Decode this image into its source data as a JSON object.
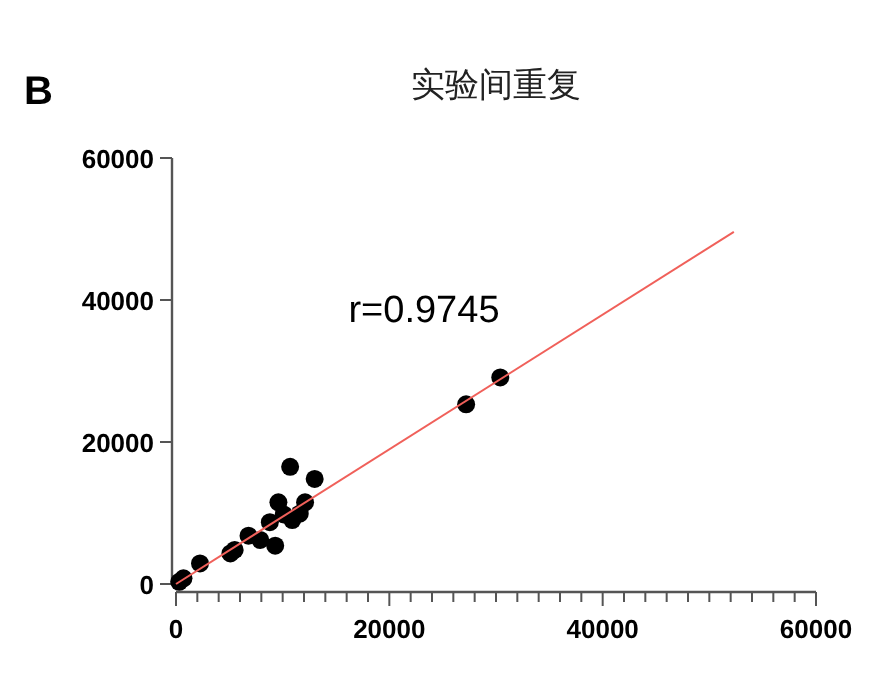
{
  "chart_data": {
    "type": "scatter",
    "title": "实验间重复",
    "annotations": [
      "B",
      "r=0.9745"
    ],
    "xlim": [
      0,
      60000
    ],
    "ylim": [
      0,
      60000
    ],
    "xticks": [
      0,
      {
        "value": 2000,
        "label": null
      },
      {
        "value": 4000,
        "label": null
      },
      {
        "value": 6000,
        "label": null
      },
      {
        "value": 8000,
        "label": null
      },
      {
        "value": 10000,
        "label": null
      },
      {
        "value": 12000,
        "label": null
      },
      {
        "value": 14000,
        "label": null
      },
      {
        "value": 16000,
        "label": null
      },
      {
        "value": 18000,
        "label": null
      },
      20000,
      {
        "value": 22000,
        "label": null
      },
      {
        "value": 24000,
        "label": null
      },
      {
        "value": 26000,
        "label": null
      },
      {
        "value": 28000,
        "label": null
      },
      {
        "value": 30000,
        "label": null
      },
      {
        "value": 32000,
        "label": null
      },
      {
        "value": 34000,
        "label": null
      },
      {
        "value": 36000,
        "label": null
      },
      {
        "value": 38000,
        "label": null
      },
      40000,
      {
        "value": 42000,
        "label": null
      },
      {
        "value": 44000,
        "label": null
      },
      {
        "value": 46000,
        "label": null
      },
      {
        "value": 48000,
        "label": null
      },
      {
        "value": 50000,
        "label": null
      },
      {
        "value": 52000,
        "label": null
      },
      {
        "value": 54000,
        "label": null
      },
      {
        "value": 56000,
        "label": null
      },
      {
        "value": 58000,
        "label": null
      },
      60000
    ],
    "yticks": [
      0,
      20000,
      40000,
      60000
    ],
    "grid": false,
    "marker": "circle",
    "series": [
      {
        "type": "scatter",
        "color": "#000000",
        "x": [
          300,
          700,
          2250,
          5100,
          5500,
          6800,
          7900,
          9300,
          8800,
          9600,
          10100,
          10700,
          10900,
          11600,
          12100,
          13000,
          27200,
          30400
        ],
        "values": [
          300,
          800,
          2900,
          4300,
          4800,
          6800,
          6200,
          5400,
          8700,
          11500,
          9800,
          16500,
          9000,
          9900,
          11500,
          14800,
          25300,
          29100
        ]
      },
      {
        "type": "line",
        "color": "#f0605a",
        "marker": "none",
        "x": [
          0,
          52300
        ],
        "values": [
          0,
          49600
        ]
      }
    ]
  }
}
